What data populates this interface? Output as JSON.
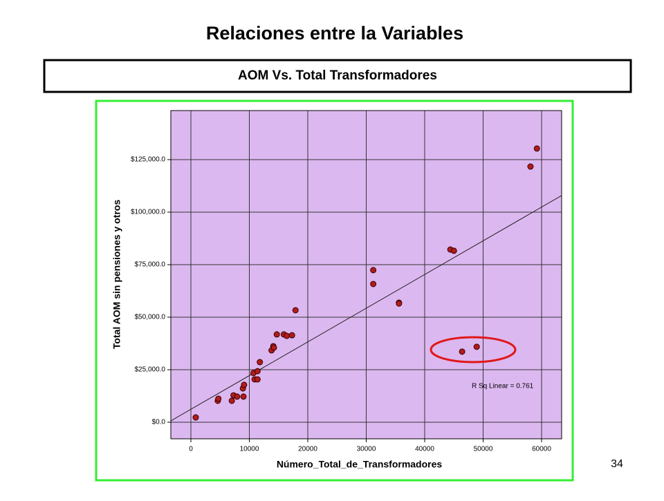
{
  "title": "Relaciones entre la Variables",
  "subtitle": "AOM Vs. Total Transformadores",
  "page_number": "34",
  "chart_data": {
    "type": "scatter",
    "x_label": "Número_Total_de_Transformadores",
    "y_label": "Total AOM sin pensiones y otros",
    "annotation": "R Sq Linear = 0.761",
    "color": "#b01c1c",
    "background": "#dcb8f0",
    "grid": true,
    "xlim": [
      -3430,
      63430
    ],
    "ylim": [
      -7895,
      148355
    ],
    "xticks": [
      0,
      10000,
      20000,
      30000,
      40000,
      50000,
      60000
    ],
    "yticks": [
      {
        "value": 0,
        "label": "$0.0"
      },
      {
        "value": 25000,
        "label": "$25,000.0"
      },
      {
        "value": 50000,
        "label": "$50,000.0"
      },
      {
        "value": 75000,
        "label": "$75,000.0"
      },
      {
        "value": 100000,
        "label": "$100,000.0"
      },
      {
        "value": 125000,
        "label": "$125,000.0"
      }
    ],
    "x": [
      830,
      4600,
      4700,
      7000,
      7300,
      7900,
      9000,
      8900,
      9100,
      10700,
      10900,
      11400,
      11400,
      11800,
      13800,
      14100,
      14200,
      14700,
      15900,
      16400,
      17300,
      17900,
      31200,
      31200,
      35600,
      35600,
      44400,
      45000,
      46400,
      48900,
      58100,
      59200
    ],
    "values": [
      2300,
      10200,
      11200,
      10200,
      12800,
      12200,
      12200,
      16100,
      17800,
      23400,
      20400,
      20400,
      24300,
      28600,
      34200,
      36200,
      35500,
      41800,
      41800,
      41100,
      41400,
      53300,
      72400,
      65800,
      56900,
      56500,
      82200,
      81600,
      33600,
      35900,
      121700,
      130300
    ],
    "trendline": {
      "x": [
        -3430,
        63430
      ],
      "values": [
        650,
        107900
      ]
    }
  }
}
